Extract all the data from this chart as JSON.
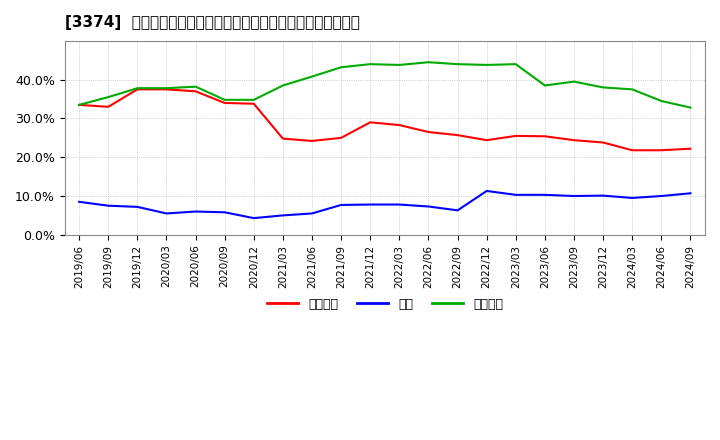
{
  "title": "[3374]  売上債権、在庫、買入債務の総資産に対する比率の推移",
  "dates": [
    "2019/06",
    "2019/09",
    "2019/12",
    "2020/03",
    "2020/06",
    "2020/09",
    "2020/12",
    "2021/03",
    "2021/06",
    "2021/09",
    "2021/12",
    "2022/03",
    "2022/06",
    "2022/09",
    "2022/12",
    "2023/03",
    "2023/06",
    "2023/09",
    "2023/12",
    "2024/03",
    "2024/06",
    "2024/09"
  ],
  "receivables": [
    0.335,
    0.33,
    0.375,
    0.375,
    0.37,
    0.34,
    0.338,
    0.248,
    0.242,
    0.25,
    0.29,
    0.283,
    0.265,
    0.257,
    0.244,
    0.255,
    0.254,
    0.244,
    0.238,
    0.218,
    0.218,
    0.222
  ],
  "inventory": [
    0.085,
    0.075,
    0.072,
    0.055,
    0.06,
    0.058,
    0.043,
    0.05,
    0.055,
    0.077,
    0.078,
    0.078,
    0.073,
    0.063,
    0.113,
    0.103,
    0.103,
    0.1,
    0.101,
    0.095,
    0.1,
    0.107
  ],
  "payables": [
    0.335,
    0.355,
    0.378,
    0.378,
    0.382,
    0.348,
    0.348,
    0.385,
    0.408,
    0.432,
    0.44,
    0.438,
    0.445,
    0.44,
    0.438,
    0.44,
    0.385,
    0.395,
    0.38,
    0.375,
    0.345,
    0.328
  ],
  "receivables_color": "#ff0000",
  "inventory_color": "#0000ff",
  "payables_color": "#00aa00",
  "legend_labels": [
    "売上債権",
    "在庫",
    "買入債務"
  ],
  "ylim": [
    0.0,
    0.5
  ],
  "yticks": [
    0.0,
    0.1,
    0.2,
    0.3,
    0.4
  ],
  "background_color": "#ffffff",
  "plot_bg_color": "#ffffff",
  "grid_color": "#b0b0b0"
}
